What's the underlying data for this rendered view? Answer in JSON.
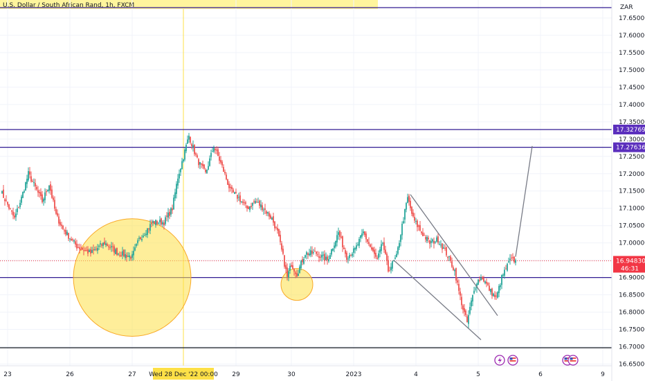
{
  "header": {
    "title": "U.S. Dollar / South African Rand, 1h, FXCM",
    "currency": "ZAR",
    "highlight_color": "#fff59d"
  },
  "chart_data": {
    "type": "candlestick",
    "title": "U.S. Dollar / South African Rand, 1h, FXCM",
    "y_unit": "ZAR",
    "ylim": [
      16.645,
      17.702
    ],
    "y_ticks": [
      "17.65000",
      "17.60000",
      "17.55000",
      "17.50000",
      "17.45000",
      "17.40000",
      "17.35000",
      "17.30000",
      "17.25000",
      "17.20000",
      "17.15000",
      "17.10000",
      "17.05000",
      "17.00000",
      "16.95000",
      "16.90000",
      "16.85000",
      "16.80000",
      "16.75000",
      "16.70000",
      "16.65000"
    ],
    "x_ticks": [
      {
        "label": "23",
        "bar": 5
      },
      {
        "label": "26",
        "bar": 50
      },
      {
        "label": "27",
        "bar": 95
      },
      {
        "label": "29",
        "bar": 170
      },
      {
        "label": "30",
        "bar": 210
      },
      {
        "label": "2023",
        "bar": 255
      },
      {
        "label": "4",
        "bar": 300
      },
      {
        "label": "5",
        "bar": 345
      },
      {
        "label": "6",
        "bar": 390
      },
      {
        "label": "9",
        "bar": 435
      }
    ],
    "crosshair_label": "Wed 28 Dec '22   00:00",
    "crosshair_bar": 132,
    "bar_count": 438,
    "colors": {
      "up": "#26a69a",
      "down": "#ef5350",
      "hline": "#311b92",
      "price_tag": "#f23645",
      "level_tag": "#5b2fbd",
      "trendline": "#787b86",
      "circle": "#fde047"
    },
    "horizontal_levels": [
      {
        "value": 17.68,
        "label": ""
      },
      {
        "value": 17.32769,
        "label": "17.32769"
      },
      {
        "value": 17.27636,
        "label": "17.27636"
      },
      {
        "value": 16.9,
        "label": ""
      },
      {
        "value": 16.697,
        "label": ""
      }
    ],
    "current_price": {
      "value": 16.9483,
      "label": "16.94830",
      "countdown": "46:31"
    },
    "series": [
      {
        "name": "price",
        "anchors": [
          [
            0,
            17.15
          ],
          [
            10,
            17.07
          ],
          [
            15,
            17.13
          ],
          [
            20,
            17.2
          ],
          [
            25,
            17.16
          ],
          [
            30,
            17.12
          ],
          [
            35,
            17.17
          ],
          [
            40,
            17.08
          ],
          [
            45,
            17.04
          ],
          [
            55,
            16.99
          ],
          [
            65,
            16.97
          ],
          [
            75,
            17.0
          ],
          [
            85,
            16.97
          ],
          [
            95,
            16.96
          ],
          [
            100,
            17.01
          ],
          [
            110,
            17.06
          ],
          [
            118,
            17.06
          ],
          [
            124,
            17.1
          ],
          [
            128,
            17.19
          ],
          [
            132,
            17.25
          ],
          [
            136,
            17.31
          ],
          [
            142,
            17.24
          ],
          [
            148,
            17.2
          ],
          [
            154,
            17.28
          ],
          [
            160,
            17.22
          ],
          [
            166,
            17.15
          ],
          [
            172,
            17.13
          ],
          [
            178,
            17.1
          ],
          [
            184,
            17.12
          ],
          [
            190,
            17.1
          ],
          [
            196,
            17.07
          ],
          [
            200,
            17.03
          ],
          [
            204,
            16.96
          ],
          [
            207,
            16.9
          ],
          [
            210,
            16.94
          ],
          [
            214,
            16.91
          ],
          [
            220,
            16.97
          ],
          [
            228,
            16.97
          ],
          [
            236,
            16.95
          ],
          [
            244,
            17.03
          ],
          [
            250,
            16.96
          ],
          [
            256,
            16.98
          ],
          [
            262,
            17.03
          ],
          [
            268,
            16.98
          ],
          [
            272,
            16.95
          ],
          [
            276,
            17.0
          ],
          [
            280,
            16.92
          ],
          [
            286,
            16.96
          ],
          [
            290,
            17.05
          ],
          [
            294,
            17.13
          ],
          [
            298,
            17.07
          ],
          [
            304,
            17.03
          ],
          [
            310,
            17.0
          ],
          [
            316,
            17.01
          ],
          [
            322,
            16.97
          ],
          [
            328,
            16.92
          ],
          [
            331,
            16.86
          ],
          [
            334,
            16.81
          ],
          [
            337,
            16.77
          ],
          [
            340,
            16.83
          ],
          [
            344,
            16.89
          ],
          [
            348,
            16.9
          ],
          [
            354,
            16.86
          ],
          [
            358,
            16.84
          ],
          [
            362,
            16.9
          ],
          [
            368,
            16.95
          ],
          [
            372,
            16.95
          ]
        ]
      }
    ],
    "annotations": [
      {
        "type": "circle",
        "label": "",
        "center": [
          95,
          16.9
        ],
        "radius_price": 0.17
      },
      {
        "type": "circle",
        "label": "",
        "center": [
          214,
          16.88
        ],
        "radius_price": 0.046
      },
      {
        "type": "trendline",
        "label": "",
        "from": [
          296,
          17.14
        ],
        "to": [
          359,
          16.79
        ]
      },
      {
        "type": "trendline",
        "label": "",
        "from": [
          284,
          16.95
        ],
        "to": [
          347,
          16.72
        ]
      },
      {
        "type": "trendline",
        "label": "",
        "from": [
          372,
          16.96
        ],
        "to": [
          384,
          17.28
        ]
      }
    ],
    "grid": true
  }
}
